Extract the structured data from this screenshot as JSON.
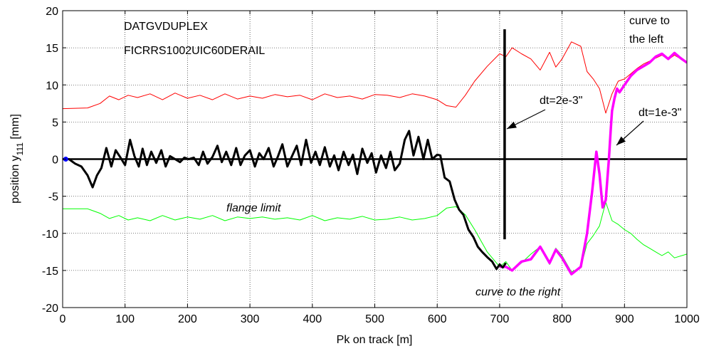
{
  "chart_data": {
    "type": "line",
    "xlabel": "Pk on track [m]",
    "ylabel": "position y",
    "ylabel_sub": "111",
    "ylabel_unit": " [mm]",
    "xlim": [
      0,
      1000
    ],
    "ylim": [
      -20,
      20
    ],
    "xticks": [
      0,
      100,
      200,
      300,
      400,
      500,
      600,
      700,
      800,
      900,
      1000
    ],
    "yticks": [
      -20,
      -15,
      -10,
      -5,
      0,
      5,
      10,
      15,
      20
    ],
    "grid": true,
    "colors": {
      "red": "#ff0000",
      "green": "#00ff00",
      "black": "#000000",
      "magenta": "#ff00ff",
      "marker": "#0000ff"
    },
    "series": [
      {
        "role": "upper-flange-limit",
        "color": "#ff0000",
        "x": [
          0,
          40,
          60,
          75,
          90,
          105,
          120,
          140,
          160,
          180,
          200,
          220,
          240,
          260,
          280,
          300,
          320,
          340,
          360,
          380,
          400,
          420,
          440,
          460,
          480,
          500,
          520,
          540,
          560,
          580,
          600,
          615,
          630,
          645,
          660,
          680,
          700,
          710,
          720,
          735,
          750,
          765,
          780,
          790,
          800,
          815,
          830,
          840,
          850,
          860,
          870,
          880,
          890,
          900,
          910,
          920,
          930,
          940,
          950,
          960,
          970,
          980,
          1000
        ],
        "y": [
          6.8,
          6.9,
          7.5,
          8.5,
          8.0,
          8.6,
          8.3,
          8.8,
          8.0,
          8.9,
          8.2,
          8.6,
          8.0,
          8.8,
          8.1,
          8.5,
          8.2,
          8.7,
          8.4,
          8.6,
          8.0,
          8.8,
          8.3,
          8.5,
          8.1,
          8.7,
          8.6,
          8.3,
          8.8,
          8.5,
          8.0,
          7.2,
          7.0,
          8.6,
          10.5,
          12.5,
          14.2,
          13.8,
          15.0,
          14.2,
          13.5,
          12.0,
          14.4,
          12.4,
          13.5,
          15.8,
          15.2,
          11.8,
          10.8,
          9.5,
          6.2,
          8.8,
          10.5,
          10.8,
          11.5,
          12.2,
          12.8,
          13.2,
          13.6,
          14.0,
          13.4,
          14.0,
          13.0
        ]
      },
      {
        "role": "lower-flange-limit",
        "color": "#00ff00",
        "x": [
          0,
          40,
          60,
          75,
          90,
          105,
          120,
          140,
          160,
          180,
          200,
          220,
          240,
          260,
          280,
          300,
          320,
          340,
          360,
          380,
          400,
          420,
          440,
          460,
          480,
          500,
          520,
          540,
          560,
          580,
          600,
          615,
          630,
          645,
          660,
          680,
          700,
          710,
          720,
          735,
          750,
          765,
          780,
          790,
          800,
          815,
          830,
          840,
          850,
          860,
          870,
          880,
          890,
          900,
          910,
          920,
          930,
          940,
          950,
          960,
          970,
          980,
          1000
        ],
        "y": [
          -6.7,
          -6.7,
          -7.3,
          -8.0,
          -7.6,
          -8.2,
          -7.9,
          -8.3,
          -7.6,
          -8.2,
          -7.8,
          -8.1,
          -7.6,
          -8.3,
          -7.8,
          -8.0,
          -7.8,
          -8.1,
          -7.9,
          -8.2,
          -7.6,
          -8.3,
          -7.9,
          -8.1,
          -7.7,
          -8.2,
          -8.1,
          -7.8,
          -8.2,
          -8.0,
          -7.6,
          -6.6,
          -6.4,
          -7.5,
          -9.5,
          -12.5,
          -14.5,
          -13.8,
          -15.0,
          -14.0,
          -12.8,
          -11.8,
          -14.2,
          -12.0,
          -13.0,
          -15.2,
          -14.6,
          -11.4,
          -10.3,
          -9.0,
          -5.8,
          -8.3,
          -8.8,
          -9.5,
          -10.0,
          -10.8,
          -11.5,
          -12.0,
          -12.5,
          -13.0,
          -12.5,
          -13.3,
          -12.8
        ]
      },
      {
        "role": "position-dt-1e-3",
        "color": "#ff00ff",
        "x": [
          700,
          710,
          720,
          735,
          750,
          765,
          780,
          790,
          800,
          815,
          830,
          840,
          848,
          855,
          860,
          865,
          870,
          875,
          878,
          880,
          884,
          888,
          892,
          900,
          910,
          920,
          930,
          940,
          950,
          960,
          970,
          980,
          990,
          1000
        ],
        "y": [
          -14.5,
          -14.5,
          -15.0,
          -13.8,
          -13.5,
          -11.8,
          -14.0,
          -12.2,
          -13.3,
          -15.5,
          -14.5,
          -10.0,
          -4.5,
          1.0,
          -2.0,
          -6.5,
          -5.5,
          0.0,
          4.0,
          6.5,
          8.2,
          9.5,
          9.0,
          10.0,
          11.2,
          12.0,
          12.5,
          13.0,
          13.8,
          14.2,
          13.5,
          14.3,
          13.6,
          13.0
        ]
      },
      {
        "role": "position-dt-2e-3",
        "color": "#000000",
        "x": [
          0,
          10,
          20,
          30,
          40,
          48,
          55,
          62,
          70,
          78,
          85,
          92,
          100,
          108,
          115,
          122,
          128,
          135,
          142,
          150,
          158,
          165,
          172,
          180,
          188,
          195,
          202,
          210,
          218,
          225,
          232,
          240,
          248,
          255,
          262,
          270,
          278,
          285,
          292,
          300,
          308,
          315,
          322,
          330,
          338,
          345,
          352,
          360,
          368,
          375,
          382,
          390,
          398,
          405,
          412,
          420,
          428,
          435,
          442,
          450,
          458,
          465,
          472,
          480,
          488,
          495,
          502,
          510,
          518,
          525,
          532,
          540,
          548,
          555,
          562,
          570,
          578,
          585,
          592,
          600,
          605,
          612,
          620,
          628,
          635,
          642,
          650,
          658,
          665,
          672,
          680,
          688,
          695,
          700,
          705,
          710
        ],
        "y": [
          0.0,
          0.0,
          -0.6,
          -1.0,
          -2.2,
          -3.8,
          -2.2,
          -1.2,
          1.5,
          -1.0,
          1.2,
          0.3,
          -0.8,
          2.6,
          0.4,
          -1.0,
          1.4,
          -0.8,
          1.0,
          -0.5,
          1.2,
          -1.0,
          0.4,
          0.0,
          -0.4,
          0.2,
          0.0,
          0.2,
          -0.8,
          1.0,
          -0.6,
          0.3,
          1.8,
          -0.4,
          1.0,
          -0.8,
          1.5,
          -0.8,
          0.5,
          1.2,
          -1.0,
          0.8,
          0.0,
          1.5,
          -1.0,
          0.4,
          2.0,
          -1.0,
          0.5,
          1.8,
          -0.8,
          2.6,
          -0.5,
          1.0,
          -0.8,
          1.6,
          -1.0,
          0.5,
          -1.5,
          1.0,
          -0.8,
          0.6,
          -2.0,
          1.4,
          -0.5,
          0.8,
          -1.8,
          0.5,
          -1.2,
          1.0,
          -1.5,
          -0.6,
          2.6,
          3.8,
          0.5,
          3.0,
          0.0,
          2.6,
          0.0,
          0.6,
          0.5,
          -2.5,
          -3.0,
          -5.5,
          -6.8,
          -7.5,
          -9.5,
          -10.5,
          -11.8,
          -12.5,
          -13.2,
          -13.8,
          -14.8,
          -14.2,
          -14.6,
          -14.0
        ]
      }
    ],
    "start_marker": {
      "x": 5,
      "y": 0,
      "color": "#0000ff"
    },
    "reference_line": {
      "y": 0
    },
    "vertical_segment": {
      "x": 708,
      "y_from": 17.5,
      "y_to": -10.8
    },
    "annotations": {
      "title1": "DATGVDUPLEX",
      "title2": "FICRRS1002UIC60DERAIL",
      "dt2": "dt=2e-3\"",
      "dt1": "dt=1e-3\"",
      "flange": "flange limit",
      "curve_right": "curve to the right",
      "curve_left_1": "curve to",
      "curve_left_2": "the left"
    }
  }
}
